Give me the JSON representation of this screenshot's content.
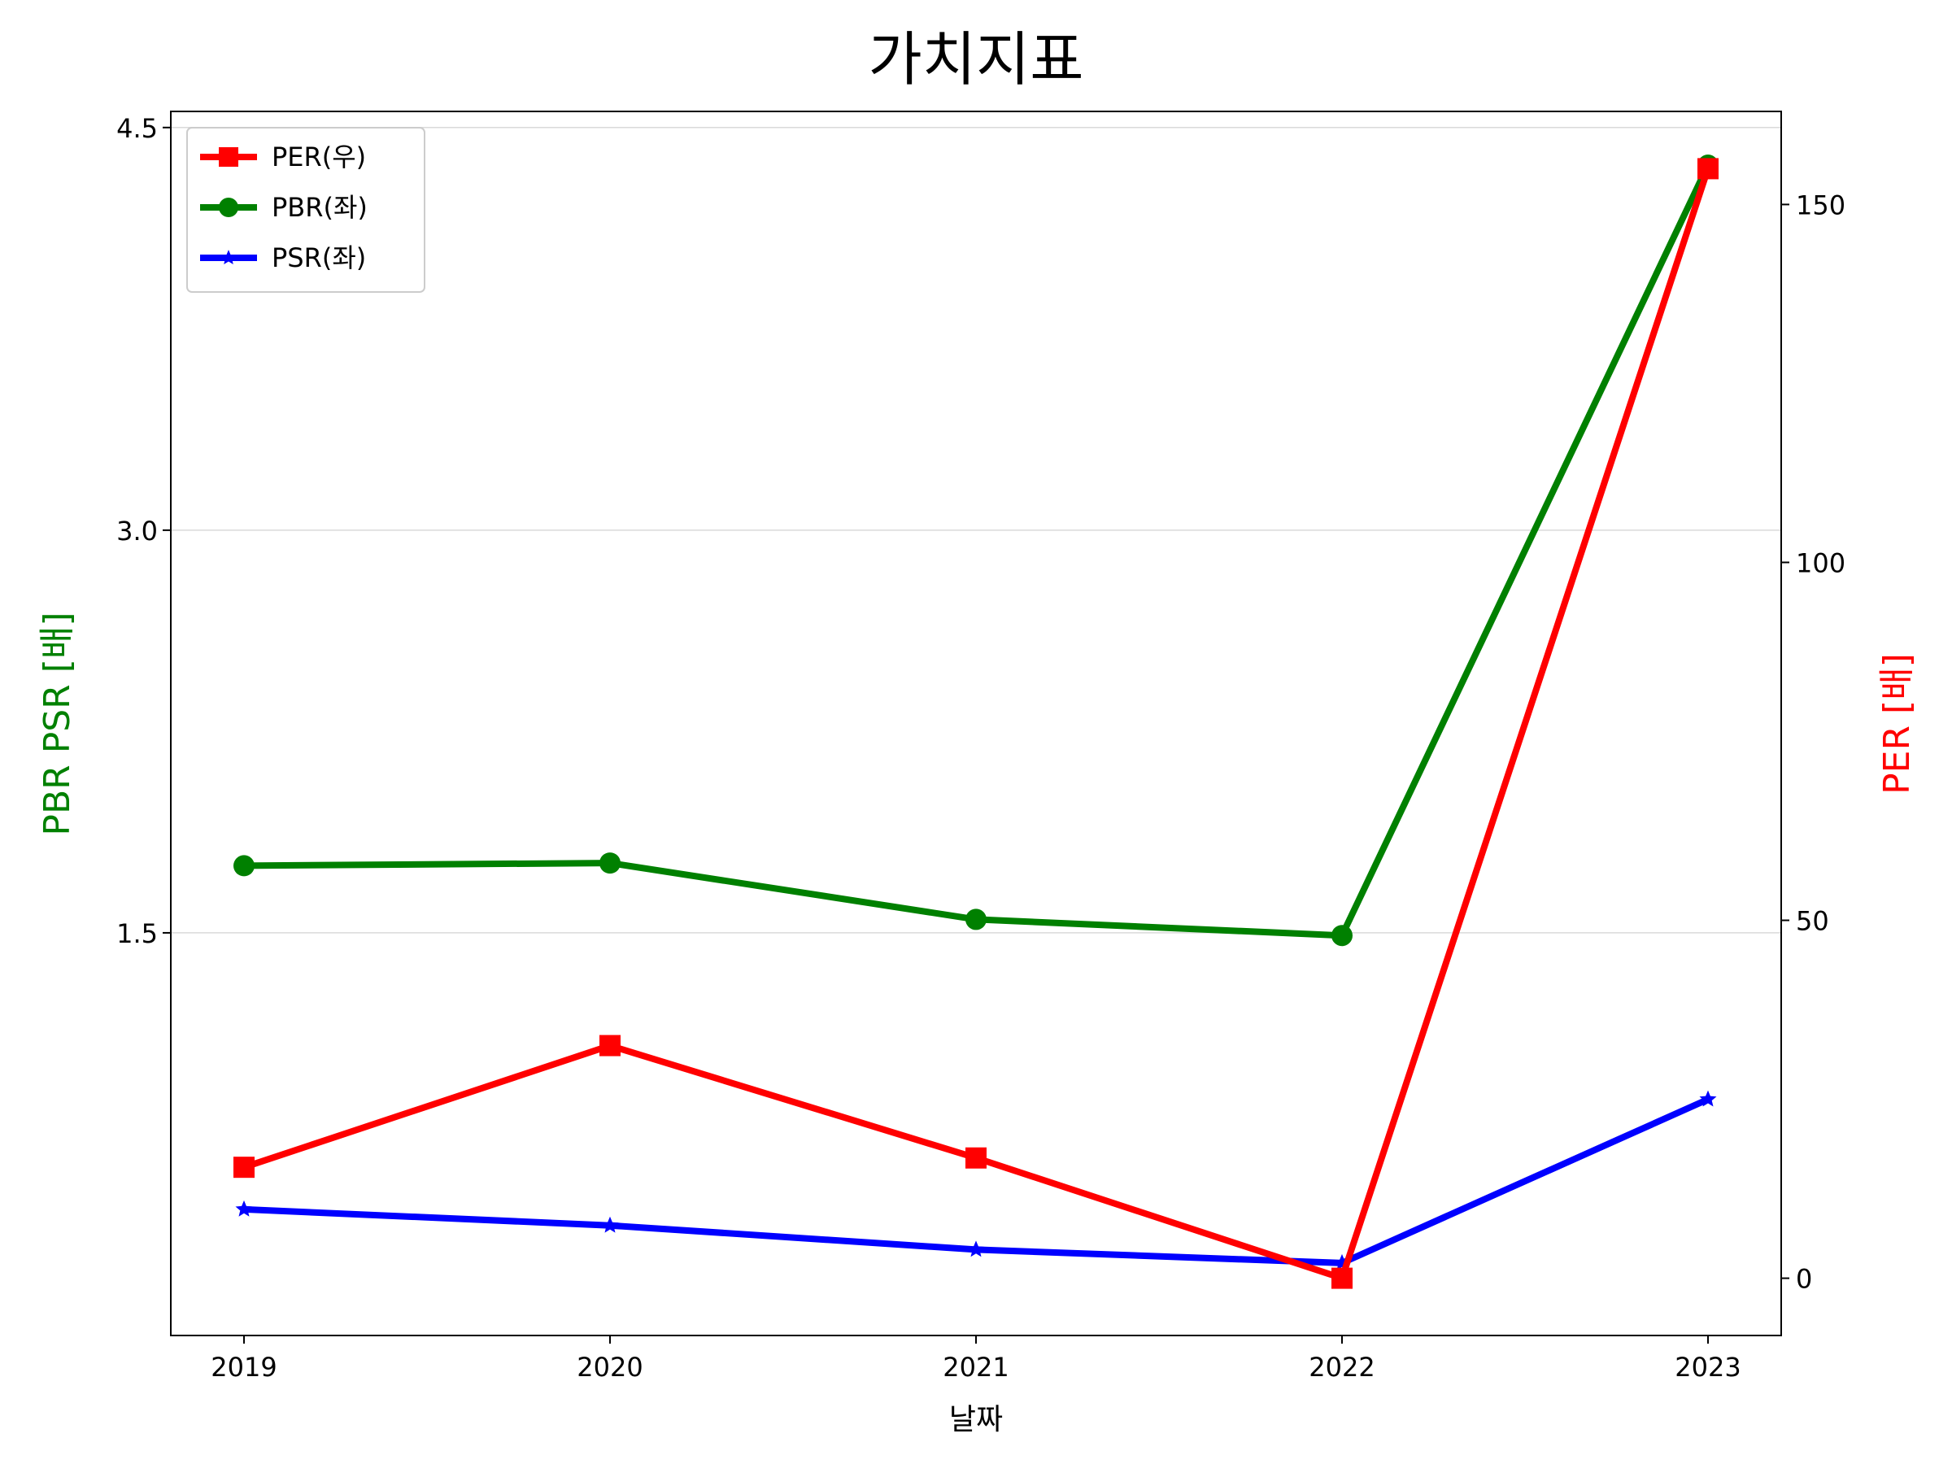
{
  "chart_data": {
    "type": "line",
    "title": "가치지표",
    "xlabel": "날짜",
    "ylabel_left": "PBR PSR [배]",
    "ylabel_right": "PER [배]",
    "x": [
      "2019",
      "2020",
      "2021",
      "2022",
      "2023"
    ],
    "ylim_left": [
      0.0,
      4.56
    ],
    "ylim_right": [
      -8,
      163
    ],
    "yticks_left": [
      "1.5",
      "3.0",
      "4.5"
    ],
    "yticks_right": [
      "0",
      "50",
      "100",
      "150"
    ],
    "grid": "horizontal",
    "legend_position": "top-left",
    "series": [
      {
        "name": "PER(우)",
        "axis": "right",
        "color": "#ff0000",
        "marker": "square",
        "values": [
          15.5,
          32.5,
          16.8,
          0.0,
          155.0
        ]
      },
      {
        "name": "PBR(좌)",
        "axis": "left",
        "color": "#008000",
        "marker": "circle",
        "values": [
          1.75,
          1.76,
          1.55,
          1.49,
          4.36
        ]
      },
      {
        "name": "PSR(좌)",
        "axis": "left",
        "color": "#0000ff",
        "marker": "star",
        "values": [
          0.47,
          0.41,
          0.32,
          0.27,
          0.88
        ]
      }
    ]
  }
}
